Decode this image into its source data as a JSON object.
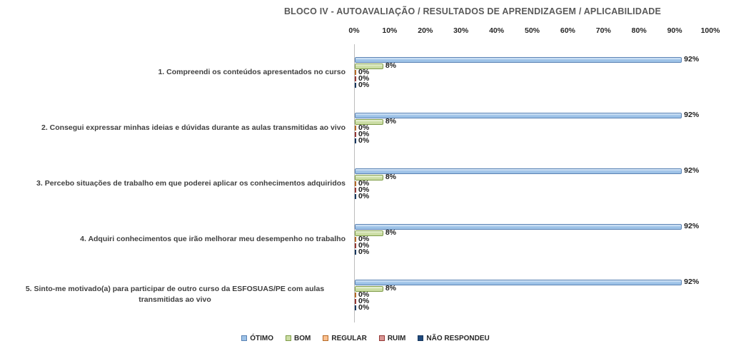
{
  "chart_data": {
    "type": "bar",
    "orientation": "horizontal",
    "title": "BLOCO IV - AUTOAVALIAÇÃO / RESULTADOS DE APRENDIZAGEM / APLICABILIDADE",
    "categories": [
      "1. Compreendi os conteúdos apresentados no curso",
      "2. Consegui expressar minhas ideias e dúvidas durante as aulas transmitidas ao vivo",
      "3. Percebo situações de trabalho em que poderei aplicar os conhecimentos adquiridos",
      "4. Adquiri conhecimentos que irão melhorar meu desempenho no trabalho",
      "5. Sinto-me motivado(a) para participar de outro curso da ESFOSUAS/PE com aulas transmitidas ao vivo"
    ],
    "series": [
      {
        "name": "ÓTIMO",
        "values": [
          92,
          92,
          92,
          92,
          92
        ],
        "fill": "#9dc2e7",
        "fill_light": "#dcebf9",
        "border": "#5a82b4"
      },
      {
        "name": "BOM",
        "values": [
          8,
          8,
          8,
          8,
          8
        ],
        "fill": "#cbdda4",
        "fill_light": "#edf4de",
        "border": "#7e9c48"
      },
      {
        "name": "REGULAR",
        "values": [
          0,
          0,
          0,
          0,
          0
        ],
        "fill": "#fac090",
        "fill_light": "#fde3cd",
        "border": "#b66a27"
      },
      {
        "name": "RUIM",
        "values": [
          0,
          0,
          0,
          0,
          0
        ],
        "fill": "#d99694",
        "fill_light": "#f0d2d1",
        "border": "#943634"
      },
      {
        "name": "NÃO RESPONDEU",
        "values": [
          0,
          0,
          0,
          0,
          0
        ],
        "fill": "#1f497d",
        "fill_light": "#3a6aa8",
        "border": "#17375e"
      }
    ],
    "x_ticks": [
      "0%",
      "10%",
      "20%",
      "30%",
      "40%",
      "50%",
      "60%",
      "70%",
      "80%",
      "90%",
      "100%"
    ],
    "xlim": [
      0,
      100
    ],
    "value_label_suffix": "%",
    "legend_position": "bottom",
    "gridlines": false,
    "axis_line_color": "#bdbdbd"
  }
}
